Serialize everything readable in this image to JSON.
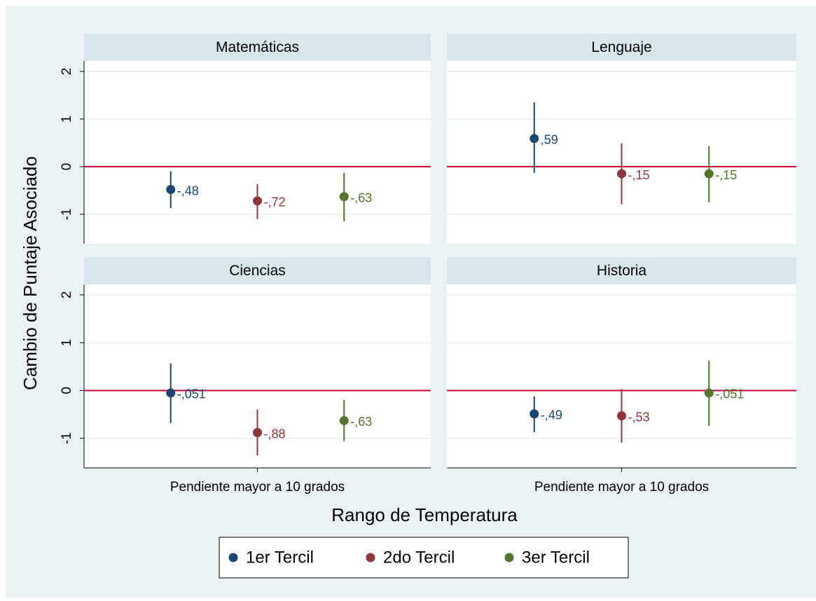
{
  "figure": {
    "y_label": "Cambio de Puntaje Asociado",
    "x_label": "Rango de Temperatura",
    "legend": [
      {
        "name": "1er Tercil",
        "color": "#1a476f"
      },
      {
        "name": "2do Tercil",
        "color": "#90353b"
      },
      {
        "name": "3er Tercil",
        "color": "#55752f"
      }
    ],
    "reference_line": 0,
    "reference_color": "#c10534"
  },
  "chart_data": [
    {
      "type": "errorbar",
      "title": "Matemáticas",
      "categories": [
        null
      ],
      "ylim": [
        -1.62,
        2.22
      ],
      "yticks": [
        -1,
        0,
        1,
        2
      ],
      "ytick_labels": true,
      "grid": true,
      "series": [
        {
          "color": "#1a476f",
          "values": [
            -0.48
          ],
          "value_labels": [
            "-,48"
          ],
          "lower": [
            -0.87
          ],
          "upper": [
            -0.1
          ]
        },
        {
          "color": "#90353b",
          "values": [
            -0.72
          ],
          "value_labels": [
            "-,72"
          ],
          "lower": [
            -1.1
          ],
          "upper": [
            -0.37
          ]
        },
        {
          "color": "#55752f",
          "values": [
            -0.63
          ],
          "value_labels": [
            "-,63"
          ],
          "lower": [
            -1.15
          ],
          "upper": [
            -0.13
          ]
        }
      ]
    },
    {
      "type": "errorbar",
      "title": "Lenguaje",
      "categories": [
        null
      ],
      "ylim": [
        -1.62,
        2.22
      ],
      "yticks": [
        -1,
        0,
        1,
        2
      ],
      "ytick_labels": false,
      "grid": true,
      "series": [
        {
          "color": "#1a476f",
          "values": [
            0.59
          ],
          "value_labels": [
            ",59"
          ],
          "lower": [
            -0.13
          ],
          "upper": [
            1.35
          ]
        },
        {
          "color": "#90353b",
          "values": [
            -0.15
          ],
          "value_labels": [
            "-,15"
          ],
          "lower": [
            -0.79
          ],
          "upper": [
            0.49
          ]
        },
        {
          "color": "#55752f",
          "values": [
            -0.15
          ],
          "value_labels": [
            "-,15"
          ],
          "lower": [
            -0.75
          ],
          "upper": [
            0.43
          ]
        }
      ]
    },
    {
      "type": "errorbar",
      "title": "Ciencias",
      "categories": [
        "Pendiente mayor a 10 grados"
      ],
      "ylim": [
        -1.62,
        2.22
      ],
      "yticks": [
        -1,
        0,
        1,
        2
      ],
      "ytick_labels": true,
      "grid": true,
      "series": [
        {
          "color": "#1a476f",
          "values": [
            -0.051
          ],
          "value_labels": [
            "-,051"
          ],
          "lower": [
            -0.68
          ],
          "upper": [
            0.57
          ]
        },
        {
          "color": "#90353b",
          "values": [
            -0.88
          ],
          "value_labels": [
            "-,88"
          ],
          "lower": [
            -1.36
          ],
          "upper": [
            -0.4
          ]
        },
        {
          "color": "#55752f",
          "values": [
            -0.63
          ],
          "value_labels": [
            "-,63"
          ],
          "lower": [
            -1.06
          ],
          "upper": [
            -0.2
          ]
        }
      ]
    },
    {
      "type": "errorbar",
      "title": "Historia",
      "categories": [
        "Pendiente mayor a 10 grados"
      ],
      "ylim": [
        -1.62,
        2.22
      ],
      "yticks": [
        -1,
        0,
        1,
        2
      ],
      "ytick_labels": false,
      "grid": true,
      "series": [
        {
          "color": "#1a476f",
          "values": [
            -0.49
          ],
          "value_labels": [
            "-,49"
          ],
          "lower": [
            -0.87
          ],
          "upper": [
            -0.12
          ]
        },
        {
          "color": "#90353b",
          "values": [
            -0.53
          ],
          "value_labels": [
            "-,53"
          ],
          "lower": [
            -1.09
          ],
          "upper": [
            0.03
          ]
        },
        {
          "color": "#55752f",
          "values": [
            -0.051
          ],
          "value_labels": [
            "-,051"
          ],
          "lower": [
            -0.74
          ],
          "upper": [
            0.63
          ]
        }
      ]
    }
  ]
}
